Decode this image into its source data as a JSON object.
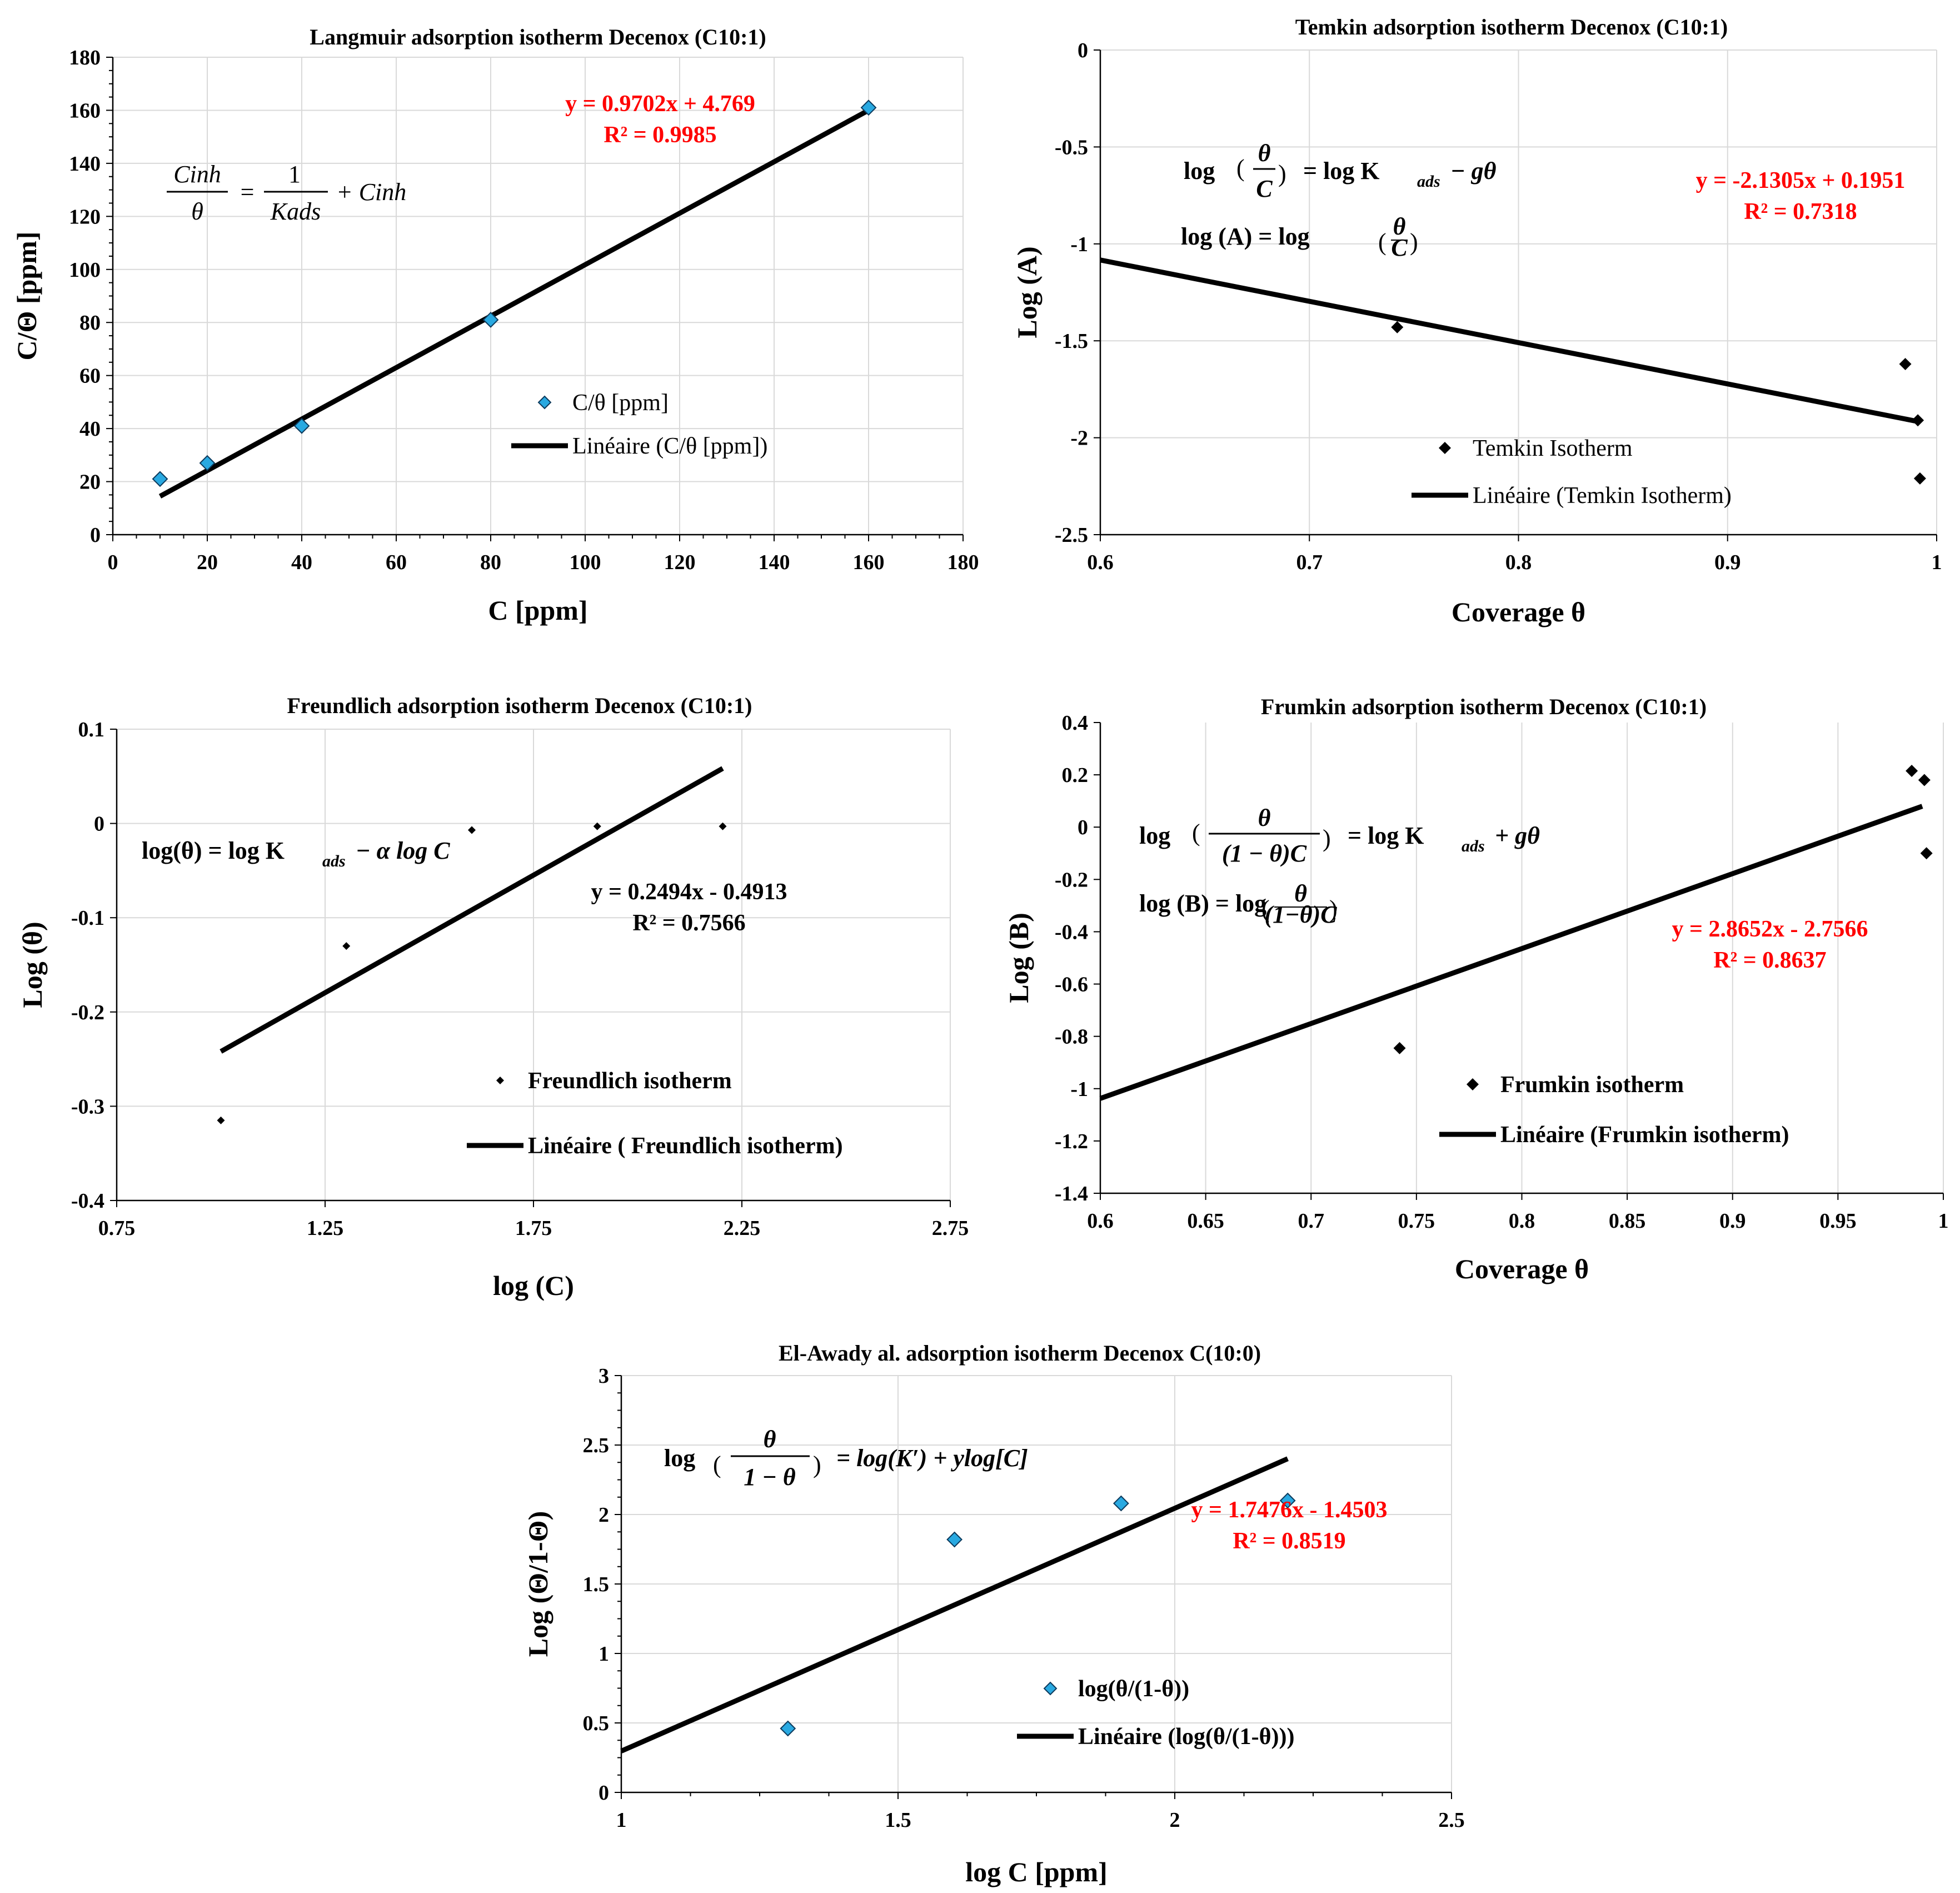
{
  "colors": {
    "accent": "#ff0000",
    "marker_blue": "#29a9e1",
    "marker_black": "#000000",
    "line": "#000000",
    "grid": "#d9d9d9"
  },
  "chart_data": [
    {
      "id": "langmuir",
      "type": "scatter",
      "title": "Langmuir adsorption isotherm    Decenox (C10:1)",
      "xlabel": "C [ppm]",
      "ylabel": "C/Θ [ppm]",
      "xlim": [
        0,
        180
      ],
      "xticks": [
        0,
        20,
        40,
        60,
        80,
        100,
        120,
        140,
        160,
        180
      ],
      "xdec": 0,
      "ylim": [
        0,
        180
      ],
      "yticks": [
        0,
        20,
        40,
        60,
        80,
        100,
        120,
        140,
        160,
        180
      ],
      "ydec": 0,
      "grid": "x-and-y",
      "marker": "diamond-blue",
      "points": [
        [
          10,
          21
        ],
        [
          20,
          27
        ],
        [
          40,
          41
        ],
        [
          80,
          81
        ],
        [
          160,
          161
        ]
      ],
      "fit": {
        "slope": 0.9702,
        "intercept": 4.769,
        "x_range": [
          10,
          160
        ]
      },
      "equation": "y = 0.9702x + 4.769",
      "r2": "R² = 0.9985",
      "legend": {
        "series": "C/θ [ppm]",
        "trend": "Linéaire (C/θ [ppm])"
      },
      "formula": {
        "lhs_num": "Cinh",
        "lhs_den": "θ",
        "eq": "=",
        "rhs_num": "1",
        "rhs_den": "Kads",
        "rhs_tail": "+ Cinh"
      }
    },
    {
      "id": "temkin",
      "type": "scatter",
      "title": "Temkin adsorption isotherm    Decenox (C10:1)",
      "xlabel": "Coverage θ",
      "ylabel": "Log (A)",
      "xlim": [
        0.6,
        1.0
      ],
      "xticks": [
        0.6,
        0.7,
        0.8,
        0.9,
        1.0
      ],
      "xdec": 1,
      "xlabels": [
        "0.6",
        "0.7",
        "0.8",
        "0.9",
        "1"
      ],
      "ylim": [
        -2.5,
        0
      ],
      "yticks": [
        -2.5,
        -2,
        -1.5,
        -1,
        -0.5,
        0
      ],
      "ylabels": [
        "-2.5",
        "-2",
        "-1.5",
        "-1",
        "-0.5",
        "0"
      ],
      "grid": "x-and-y",
      "marker": "diamond-black",
      "points": [
        [
          0.742,
          -1.43
        ],
        [
          0.985,
          -1.62
        ],
        [
          0.991,
          -1.91
        ],
        [
          0.992,
          -2.21
        ]
      ],
      "fit": {
        "slope": -2.1305,
        "intercept": 0.1951,
        "x_range": [
          0.6,
          0.992
        ]
      },
      "equation": "y = -2.1305x + 0.1951",
      "r2": "R² = 0.7318",
      "legend": {
        "series": "Temkin Isotherm",
        "trend": "Linéaire (Temkin Isotherm)"
      },
      "formula": {
        "log": "log",
        "num": "θ",
        "den": "C",
        "rhs": "= log K",
        "sub": "ads",
        "tail": "− gθ",
        "line2_lhs": "log (A) =  log",
        "line2_num": "θ",
        "line2_den": "C"
      }
    },
    {
      "id": "freundlich",
      "type": "scatter",
      "title": "Freundlich adsorption isotherm    Decenox (C10:1)",
      "xlabel": "log (C)",
      "ylabel": "Log (θ)",
      "xlim": [
        0.75,
        2.75
      ],
      "xticks": [
        0.75,
        1.25,
        1.75,
        2.25,
        2.75
      ],
      "xlabels": [
        "0.75",
        "1.25",
        "1.75",
        "2.25",
        "2.75"
      ],
      "ylim": [
        -0.4,
        0.1
      ],
      "yticks": [
        -0.4,
        -0.3,
        -0.2,
        -0.1,
        0,
        0.1
      ],
      "ylabels": [
        "-0.4",
        "-0.3",
        "-0.2",
        "-0.1",
        "0",
        "0.1"
      ],
      "grid": "x-and-y",
      "marker": "diamond-small-black",
      "points": [
        [
          1.0,
          -0.315
        ],
        [
          1.301,
          -0.13
        ],
        [
          1.602,
          -0.007
        ],
        [
          1.903,
          -0.003
        ],
        [
          2.204,
          -0.003
        ]
      ],
      "fit": {
        "slope": 0.2494,
        "intercept": -0.4913,
        "x_range": [
          1.0,
          2.204
        ]
      },
      "equation": "y = 0.2494x - 0.4913",
      "r2": "R² = 0.7566",
      "legend": {
        "series": "Freundlich isotherm",
        "trend": "Linéaire ( Freundlich isotherm)"
      },
      "formula": {
        "lhs": "log(θ) = log K",
        "sub": "ads",
        "tail": "− α log C"
      }
    },
    {
      "id": "frumkin",
      "type": "scatter",
      "title": "Frumkin adsorption isotherm    Decenox (C10:1)",
      "xlabel": "Coverage θ",
      "ylabel": "Log (B)",
      "xlim": [
        0.6,
        1.0
      ],
      "xticks": [
        0.6,
        0.65,
        0.7,
        0.75,
        0.8,
        0.85,
        0.9,
        0.95,
        1.0
      ],
      "xlabels": [
        "0.6",
        "0.65",
        "0.7",
        "0.75",
        "0.8",
        "0.85",
        "0.9",
        "0.95",
        "1"
      ],
      "ylim": [
        -1.4,
        0.4
      ],
      "yticks": [
        -1.4,
        -1.2,
        -1,
        -0.8,
        -0.6,
        -0.4,
        -0.2,
        0,
        0.2,
        0.4
      ],
      "ylabels": [
        "-1.4",
        "-1.2",
        "-1",
        "-0.8",
        "-0.6",
        "-0.4",
        "-0.2",
        "0",
        "0.2",
        "0.4"
      ],
      "grid": "x-only",
      "marker": "diamond-black",
      "points": [
        [
          0.742,
          -0.845
        ],
        [
          0.985,
          0.215
        ],
        [
          0.991,
          0.18
        ],
        [
          0.992,
          -0.1
        ]
      ],
      "fit": {
        "slope": 2.8652,
        "intercept": -2.7566,
        "x_range": [
          0.6,
          0.99
        ]
      },
      "equation": "y = 2.8652x - 2.7566",
      "r2": "R² = 0.8637",
      "legend": {
        "series": "Frumkin isotherm",
        "trend": "Linéaire (Frumkin isotherm)"
      },
      "formula": {
        "log": "log",
        "num": "θ",
        "den": "(1 − θ)C",
        "rhs": "= log K",
        "sub": "ads",
        "tail": "+ gθ",
        "line2_lhs": "log (B) = log",
        "line2_num": "θ",
        "line2_den": "(1−θ)C"
      }
    },
    {
      "id": "elawady",
      "type": "scatter",
      "title": "El-Awady al. adsorption isotherm    Decenox C(10:0)",
      "xlabel": "log C [ppm]",
      "ylabel": "Log (Θ/1-Θ)",
      "xlim": [
        1,
        2.5
      ],
      "xticks": [
        1,
        1.5,
        2,
        2.5
      ],
      "xlabels": [
        "1",
        "1.5",
        "2",
        "2.5"
      ],
      "ylim": [
        0,
        3
      ],
      "yticks": [
        0,
        0.5,
        1,
        1.5,
        2,
        2.5,
        3
      ],
      "ylabels": [
        "0",
        "0.5",
        "1",
        "1.5",
        "2",
        "2.5",
        "3"
      ],
      "grid": "x-and-y",
      "marker": "diamond-blue",
      "points": [
        [
          1.301,
          0.46
        ],
        [
          1.602,
          1.82
        ],
        [
          1.903,
          2.08
        ],
        [
          2.204,
          2.1
        ]
      ],
      "fit": {
        "slope": 1.7476,
        "intercept": -1.4503,
        "x_range": [
          1.0,
          2.204
        ]
      },
      "equation": "y = 1.7476x - 1.4503",
      "r2": "R² = 0.8519",
      "legend": {
        "series": "log(θ/(1-θ))",
        "trend": "Linéaire (log(θ/(1-θ)))"
      },
      "formula": {
        "log": "log",
        "num": "θ",
        "den": "1 − θ",
        "rhs": "= log(K′) + ylog[C]"
      }
    }
  ]
}
